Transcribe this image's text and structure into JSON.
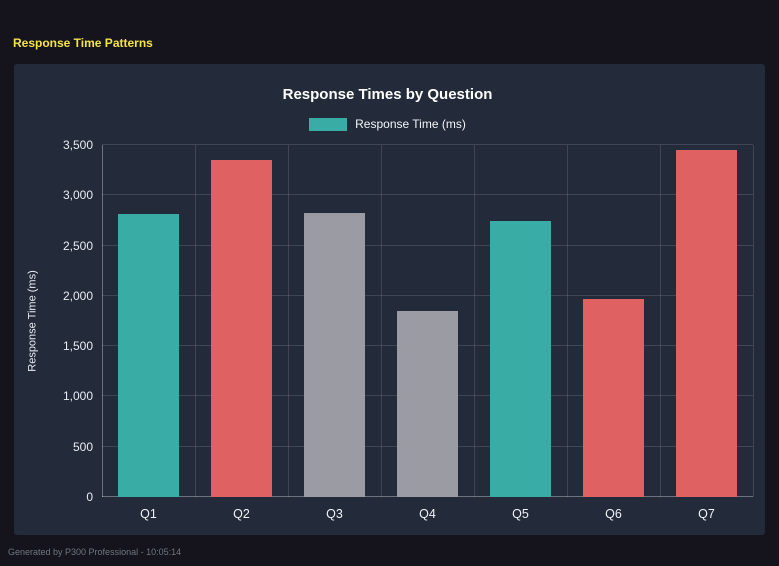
{
  "page": {
    "title": "Response Time Patterns",
    "footer": "Generated by P300 Professional - 10:05:14"
  },
  "colors": {
    "page_background": "#15141c",
    "panel_background": "#232a39",
    "title_yellow": "#f5e342",
    "teal": "#3aaca6",
    "red": "#e06161",
    "gray": "#9a9ba3"
  },
  "chart_data": {
    "type": "bar",
    "title": "Response Times by Question",
    "legend": [
      {
        "label": "Response Time (ms)",
        "color": "#3aaca6"
      }
    ],
    "legend_position": "top",
    "grid": true,
    "categories": [
      "Q1",
      "Q2",
      "Q3",
      "Q4",
      "Q5",
      "Q6",
      "Q7"
    ],
    "values": [
      2810,
      3350,
      2820,
      1850,
      2740,
      1970,
      3450
    ],
    "bar_colors": [
      "#3aaca6",
      "#e06161",
      "#9a9ba3",
      "#9a9ba3",
      "#3aaca6",
      "#e06161",
      "#e06161"
    ],
    "xlabel": "",
    "ylabel": "Response Time (ms)",
    "ylim": [
      0,
      3500
    ],
    "yticks": [
      0,
      500,
      1000,
      1500,
      2000,
      2500,
      3000,
      3500
    ],
    "ytick_labels": [
      "0",
      "500",
      "1,000",
      "1,500",
      "2,000",
      "2,500",
      "3,000",
      "3,500"
    ]
  }
}
